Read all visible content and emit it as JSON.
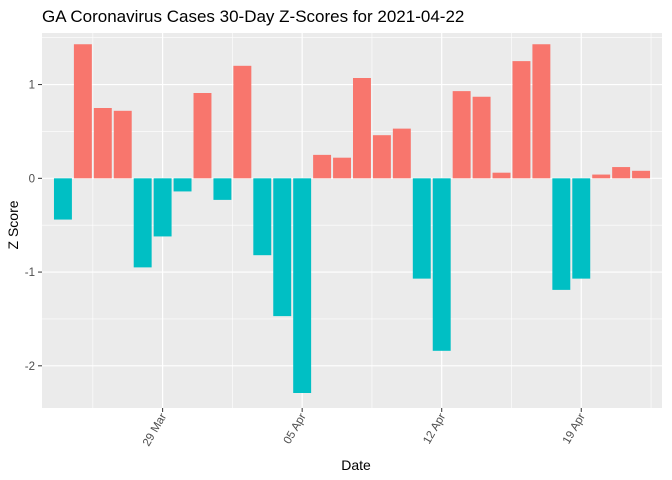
{
  "chart_data": {
    "type": "bar",
    "title": "GA Coronavirus Cases 30-Day Z-Scores for 2021-04-22",
    "xlabel": "Date",
    "ylabel": "Z Score",
    "ylim": [
      -2.45,
      1.55
    ],
    "yticks": [
      -2,
      -1,
      0,
      1
    ],
    "ytick_labels": [
      "-2",
      "-1",
      "0",
      "1"
    ],
    "xticks": [
      {
        "date": "2021-03-29",
        "label": "29 Mar"
      },
      {
        "date": "2021-04-05",
        "label": "05 Apr"
      },
      {
        "date": "2021-04-12",
        "label": "12 Apr"
      },
      {
        "date": "2021-04-19",
        "label": "19 Apr"
      }
    ],
    "x": [
      "2021-03-24",
      "2021-03-25",
      "2021-03-26",
      "2021-03-27",
      "2021-03-28",
      "2021-03-29",
      "2021-03-30",
      "2021-03-31",
      "2021-04-01",
      "2021-04-02",
      "2021-04-03",
      "2021-04-04",
      "2021-04-05",
      "2021-04-06",
      "2021-04-07",
      "2021-04-08",
      "2021-04-09",
      "2021-04-10",
      "2021-04-11",
      "2021-04-12",
      "2021-04-13",
      "2021-04-14",
      "2021-04-15",
      "2021-04-16",
      "2021-04-17",
      "2021-04-18",
      "2021-04-19",
      "2021-04-20",
      "2021-04-21",
      "2021-04-22"
    ],
    "values": [
      -0.44,
      1.43,
      0.75,
      0.72,
      -0.95,
      -0.62,
      -0.14,
      0.91,
      -0.23,
      1.2,
      -0.82,
      -1.47,
      -2.29,
      0.25,
      0.22,
      1.07,
      0.46,
      0.53,
      -1.07,
      -1.84,
      0.93,
      0.87,
      0.06,
      1.25,
      1.43,
      -1.19,
      -1.07,
      0.04,
      0.12,
      0.08
    ],
    "colors": {
      "positive": "#F8766D",
      "negative": "#00BFC4"
    },
    "panel_background": "#EBEBEB",
    "grid": true,
    "legend": "none"
  }
}
